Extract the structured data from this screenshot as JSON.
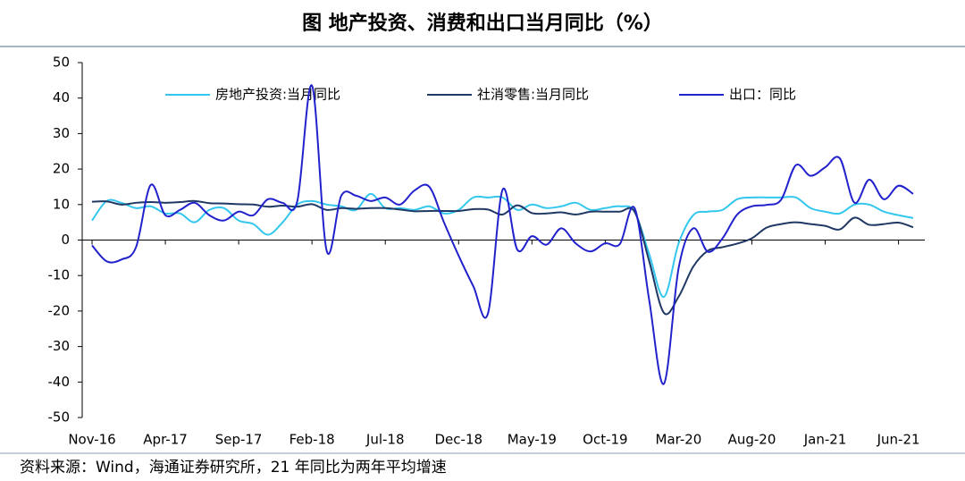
{
  "chart_data": {
    "type": "line",
    "title": "图  地产投资、消费和出口当月同比（%）",
    "source": "资料来源：Wind，海通证券研究所，21 年同比为两年平均增速",
    "categories": [
      "Nov-16",
      null,
      null,
      null,
      null,
      "Apr-17",
      null,
      null,
      null,
      null,
      "Sep-17",
      null,
      null,
      null,
      null,
      "Feb-18",
      null,
      null,
      null,
      null,
      "Jul-18",
      null,
      null,
      null,
      null,
      "Dec-18",
      null,
      null,
      null,
      null,
      "May-19",
      null,
      null,
      null,
      null,
      "Oct-19",
      null,
      null,
      null,
      null,
      "Mar-20",
      null,
      null,
      null,
      null,
      "Aug-20",
      null,
      null,
      null,
      null,
      "Jan-21",
      null,
      null,
      null,
      null,
      "Jun-21",
      null
    ],
    "series": [
      {
        "name": "房地产投资:当月同比",
        "color": "#33c7ee",
        "values": [
          5.5,
          11,
          10.5,
          9,
          9.5,
          7.5,
          7.5,
          5,
          8.5,
          9,
          5.5,
          4.5,
          1.5,
          5,
          10,
          11,
          10,
          9.5,
          8.5,
          13,
          9,
          9,
          8.5,
          9.5,
          7.5,
          8.5,
          12,
          12,
          12,
          8.5,
          10,
          9,
          9.5,
          10.5,
          8.5,
          9,
          9.5,
          8,
          -4,
          -16,
          -1,
          7,
          8,
          8.5,
          11.5,
          12,
          12,
          12,
          12,
          9,
          8,
          7.5,
          10,
          10,
          8,
          7,
          6.2
        ]
      },
      {
        "name": "社消零售:当月同比",
        "color": "#1f3864",
        "values": [
          10.8,
          10.9,
          10,
          10.5,
          10.7,
          10.5,
          10.7,
          11,
          10.4,
          10.3,
          10.1,
          10,
          9.4,
          9.7,
          9.4,
          10.1,
          8.5,
          9,
          8.8,
          9,
          9,
          8.6,
          8.1,
          8.2,
          8.2,
          8.2,
          8.7,
          8.6,
          7.2,
          9.8,
          7.6,
          7.5,
          7.8,
          7.2,
          8,
          8,
          8,
          8,
          -6,
          -20.5,
          -16,
          -7.5,
          -3,
          -2,
          -1,
          0.5,
          3.5,
          4.5,
          5,
          4.5,
          4,
          3,
          6.3,
          4.3,
          4.5,
          4.9,
          3.6
        ]
      },
      {
        "name": "出口：同比",
        "color": "#2222cc",
        "values": [
          -1.5,
          -6,
          -5.5,
          -2,
          15.5,
          7,
          8.5,
          10.5,
          7,
          5.5,
          8,
          7,
          11.5,
          10.5,
          11,
          43.5,
          -3,
          12.5,
          12.5,
          11,
          12,
          10,
          14,
          15,
          5,
          -4.4,
          -13,
          -20.7,
          14.2,
          -2.7,
          1.1,
          -1.3,
          3.3,
          -1,
          -3.2,
          -0.9,
          -1.1,
          9,
          -17,
          -40.5,
          -8,
          3.3,
          -3.3,
          0.5,
          7.2,
          9.5,
          9.9,
          11.4,
          21.1,
          18.1,
          20.5,
          23,
          10.5,
          17,
          11.5,
          15.3,
          13
        ]
      }
    ],
    "ylim": [
      -50,
      50
    ],
    "yticks": [
      -50,
      -40,
      -30,
      -20,
      -10,
      0,
      10,
      20,
      30,
      40,
      50
    ],
    "legend": "top",
    "grid": false
  }
}
